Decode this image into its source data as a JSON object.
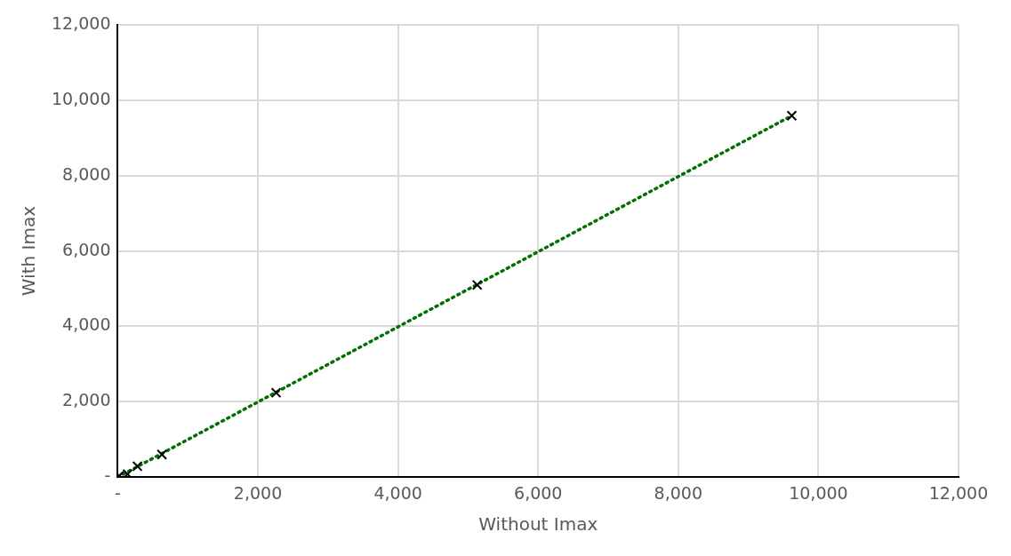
{
  "chart_data": {
    "type": "scatter",
    "xlabel": "Without Imax",
    "ylabel": "With Imax",
    "series": [
      {
        "type": "scatter",
        "color": "#000000",
        "marker": "cross",
        "x": [
          0,
          20,
          140,
          280,
          630,
          2260,
          5130,
          9620
        ],
        "values": [
          0,
          30,
          80,
          290,
          600,
          2240,
          5100,
          9590
        ]
      },
      {
        "type": "line",
        "color": "#007000",
        "marker": "none",
        "line_style": "dotted",
        "x": [
          0,
          9620
        ],
        "values": [
          0,
          9590
        ]
      }
    ],
    "xlim": [
      0,
      12000
    ],
    "ylim": [
      0,
      12000
    ],
    "xticks": [
      {
        "value": 0,
        "label": "-"
      },
      {
        "value": 2000,
        "label": "2,000"
      },
      {
        "value": 4000,
        "label": "4,000"
      },
      {
        "value": 6000,
        "label": "6,000"
      },
      {
        "value": 8000,
        "label": "8,000"
      },
      {
        "value": 10000,
        "label": "10,000"
      },
      {
        "value": 12000,
        "label": "12,000"
      }
    ],
    "yticks": [
      {
        "value": 0,
        "label": "-"
      },
      {
        "value": 2000,
        "label": "2,000"
      },
      {
        "value": 4000,
        "label": "4,000"
      },
      {
        "value": 6000,
        "label": "6,000"
      },
      {
        "value": 8000,
        "label": "8,000"
      },
      {
        "value": 10000,
        "label": "10,000"
      },
      {
        "value": 12000,
        "label": "12,000"
      }
    ],
    "grid": true,
    "legend": false
  }
}
